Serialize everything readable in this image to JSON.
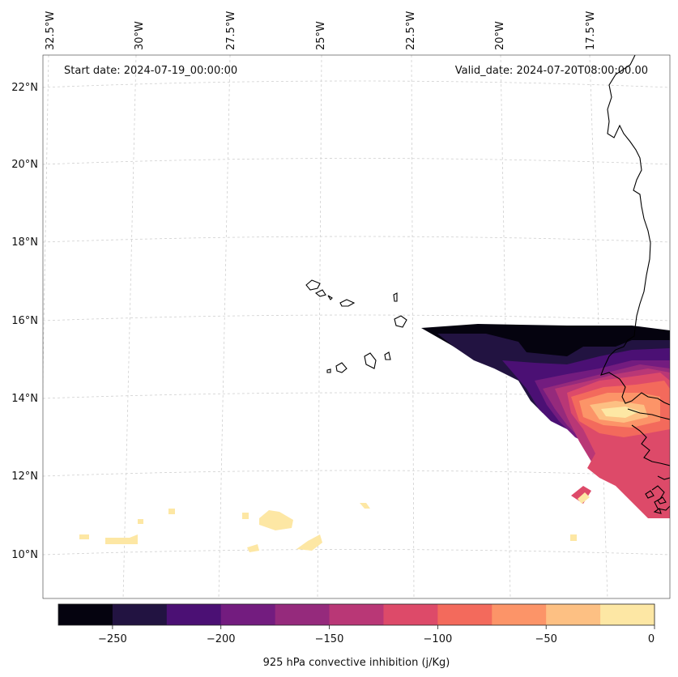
{
  "header": {
    "start_date": "Start date: 2024-07-19_00:00:00",
    "valid_date": "Valid_date: 2024-07-20T08:00:00.00"
  },
  "map": {
    "lon_labels": [
      "32.5°W",
      "30°W",
      "27.5°W",
      "25°W",
      "22.5°W",
      "20°W",
      "17.5°W"
    ],
    "lat_labels": [
      "22°N",
      "20°N",
      "18°N",
      "16°N",
      "14°N",
      "12°N",
      "10°N"
    ],
    "gridlines": "dashed light gray",
    "coastline_color": "#000000"
  },
  "colorbar": {
    "label": "925 hPa convective inhibition (j/Kg)",
    "ticks": [
      "−250",
      "−200",
      "−150",
      "−100",
      "−50",
      "0"
    ],
    "colors": [
      "#05030f",
      "#221341",
      "#4b1074",
      "#731c7f",
      "#952a7c",
      "#b93776",
      "#dd4a69",
      "#f36a5c",
      "#fc9468",
      "#fdc083",
      "#fde7a4"
    ]
  }
}
